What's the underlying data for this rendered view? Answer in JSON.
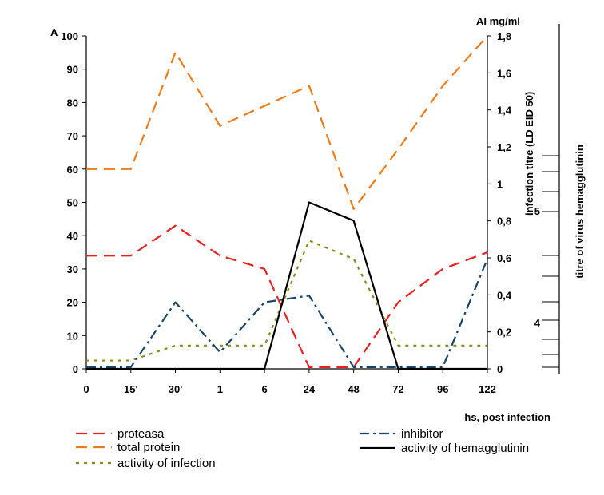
{
  "chart_data": {
    "type": "line",
    "panel_letter": "A",
    "left_axis": {
      "ylim": [
        0,
        100
      ],
      "ticks": [
        "0",
        "10",
        "20",
        "30",
        "40",
        "50",
        "60",
        "70",
        "80",
        "90",
        "100"
      ]
    },
    "right_axis": {
      "label": "AI mg/ml",
      "ylim": [
        0,
        1.8
      ],
      "ticks": [
        "0",
        "0,2",
        "0,4",
        "0,6",
        "0,8",
        "1",
        "1,2",
        "1,4",
        "1,6",
        "1,8"
      ]
    },
    "right_axis_label_infection": "infection titre (LD EID 50)",
    "far_right_axis": {
      "label": "titre of virus hemagglutinin",
      "ticks": [
        "4",
        "5"
      ]
    },
    "xlabel": "hs, post infection",
    "categories": [
      "0",
      "15'",
      "30'",
      "1",
      "6",
      "24",
      "48",
      "72",
      "96",
      "122"
    ],
    "x_tick_labels": [
      "0",
      "15'",
      "30'",
      "1",
      "6",
      "24",
      "48",
      "72",
      "96",
      "122"
    ],
    "series": [
      {
        "name": "proteasa",
        "color": "#e8201e",
        "dash": "dash",
        "values": [
          34,
          34,
          43,
          34,
          30,
          0.5,
          0.5,
          20,
          30,
          35
        ]
      },
      {
        "name": "total protein",
        "color": "#f07b17",
        "dash": "dash",
        "values": [
          60,
          60,
          95,
          73,
          79,
          85,
          48,
          66,
          85,
          100
        ]
      },
      {
        "name": "activity of infection",
        "color": "#8c8c15",
        "dash": "dot",
        "values": [
          2.5,
          2.5,
          7,
          7,
          7,
          38.5,
          33,
          7,
          7,
          7
        ]
      },
      {
        "name": "inhibitor",
        "color": "#16456b",
        "dash": "dashdot",
        "values": [
          0.5,
          0.5,
          20,
          5,
          20,
          22,
          0.5,
          0.5,
          0.5,
          33
        ]
      },
      {
        "name": "activity of hemagglutinin",
        "color": "#000000",
        "dash": "solid",
        "values": [
          0,
          0,
          0,
          0,
          0,
          50,
          44.5,
          0,
          0,
          0
        ]
      }
    ],
    "grid": false,
    "legend_position": "bottom"
  }
}
